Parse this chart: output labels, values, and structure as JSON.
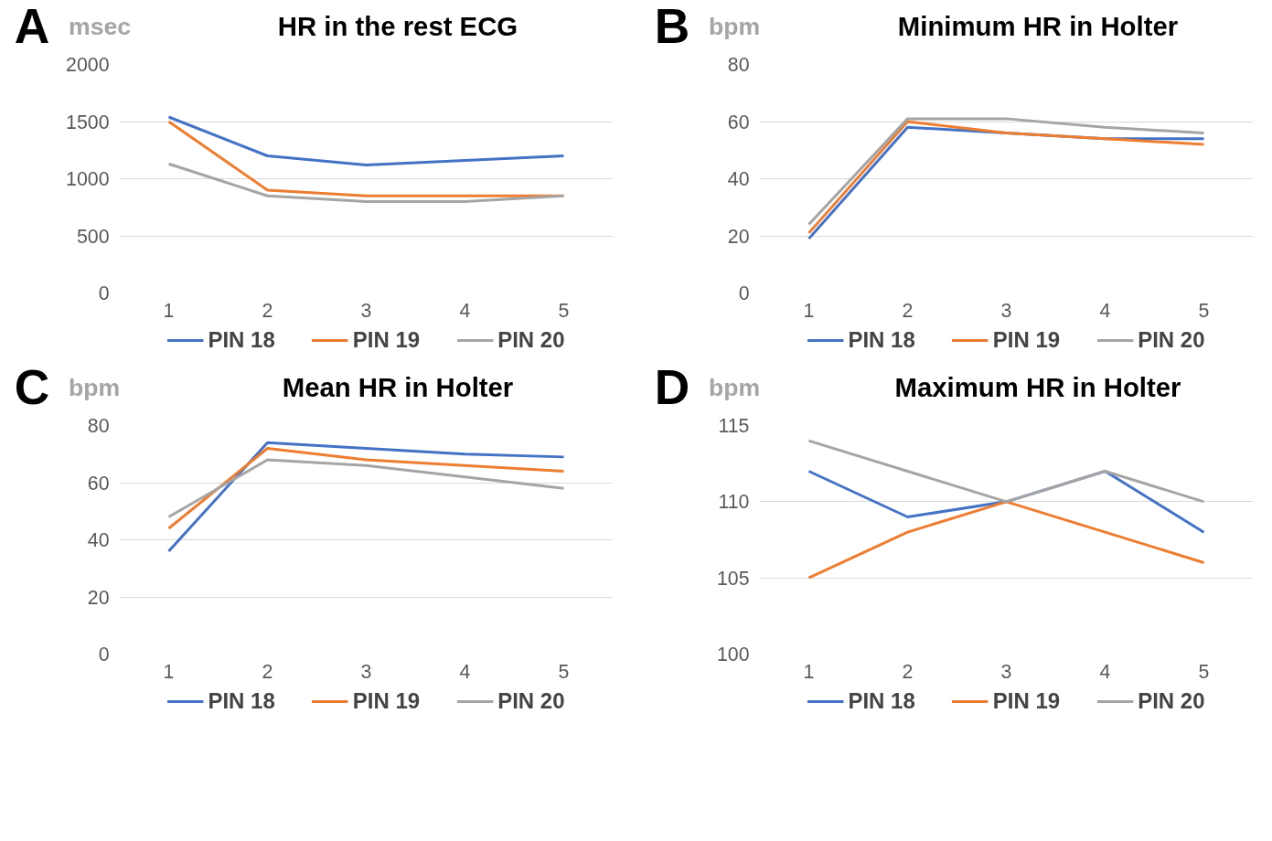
{
  "chart_data": [
    {
      "type": "line",
      "title": "HR in the rest ECG",
      "ylabel": "msec",
      "annotations": [
        "A"
      ],
      "categories": [
        "1",
        "2",
        "3",
        "4",
        "5"
      ],
      "ylim": [
        0,
        2000
      ],
      "yticks": [
        0,
        500,
        1000,
        1500,
        2000
      ],
      "grid": "y",
      "legend": "bottom",
      "marker": "none",
      "line_style": "solid",
      "series": [
        {
          "name": "PIN 18",
          "color": "#4472c4",
          "values": [
            1540,
            1200,
            1120,
            1160,
            1200
          ]
        },
        {
          "name": "PIN 19",
          "color": "#ed7d31",
          "values": [
            1500,
            900,
            850,
            850,
            850
          ]
        },
        {
          "name": "PIN 20",
          "color": "#a5a5a5",
          "values": [
            1130,
            850,
            800,
            800,
            850
          ]
        }
      ]
    },
    {
      "type": "line",
      "title": "Minimum HR in Holter",
      "ylabel": "bpm",
      "annotations": [
        "B"
      ],
      "categories": [
        "1",
        "2",
        "3",
        "4",
        "5"
      ],
      "ylim": [
        0,
        80
      ],
      "yticks": [
        0,
        20,
        40,
        60,
        80
      ],
      "grid": "y",
      "legend": "bottom",
      "marker": "none",
      "line_style": "solid",
      "series": [
        {
          "name": "PIN 18",
          "color": "#4472c4",
          "values": [
            19,
            58,
            56,
            54,
            54
          ]
        },
        {
          "name": "PIN 19",
          "color": "#ed7d31",
          "values": [
            21,
            60,
            56,
            54,
            52
          ]
        },
        {
          "name": "PIN 20",
          "color": "#a5a5a5",
          "values": [
            24,
            61,
            61,
            58,
            56
          ]
        }
      ]
    },
    {
      "type": "line",
      "title": "Mean HR in Holter",
      "ylabel": "bpm",
      "annotations": [
        "C"
      ],
      "categories": [
        "1",
        "2",
        "3",
        "4",
        "5"
      ],
      "ylim": [
        0,
        80
      ],
      "yticks": [
        0,
        20,
        40,
        60,
        80
      ],
      "grid": "y",
      "legend": "bottom",
      "marker": "none",
      "line_style": "solid",
      "series": [
        {
          "name": "PIN 18",
          "color": "#4472c4",
          "values": [
            36,
            74,
            72,
            70,
            69
          ]
        },
        {
          "name": "PIN 19",
          "color": "#ed7d31",
          "values": [
            44,
            72,
            68,
            66,
            64
          ]
        },
        {
          "name": "PIN 20",
          "color": "#a5a5a5",
          "values": [
            48,
            68,
            66,
            62,
            58
          ]
        }
      ]
    },
    {
      "type": "line",
      "title": "Maximum HR in Holter",
      "ylabel": "bpm",
      "annotations": [
        "D"
      ],
      "categories": [
        "1",
        "2",
        "3",
        "4",
        "5"
      ],
      "ylim": [
        100,
        115
      ],
      "yticks": [
        100,
        105,
        110,
        115
      ],
      "grid": "y",
      "legend": "bottom",
      "marker": "none",
      "line_style": "solid",
      "series": [
        {
          "name": "PIN 18",
          "color": "#4472c4",
          "values": [
            112,
            109,
            110,
            112,
            108
          ]
        },
        {
          "name": "PIN 19",
          "color": "#ed7d31",
          "values": [
            105,
            108,
            110,
            108,
            106
          ]
        },
        {
          "name": "PIN 20",
          "color": "#a5a5a5",
          "values": [
            114,
            112,
            110,
            112,
            110
          ]
        }
      ]
    }
  ]
}
